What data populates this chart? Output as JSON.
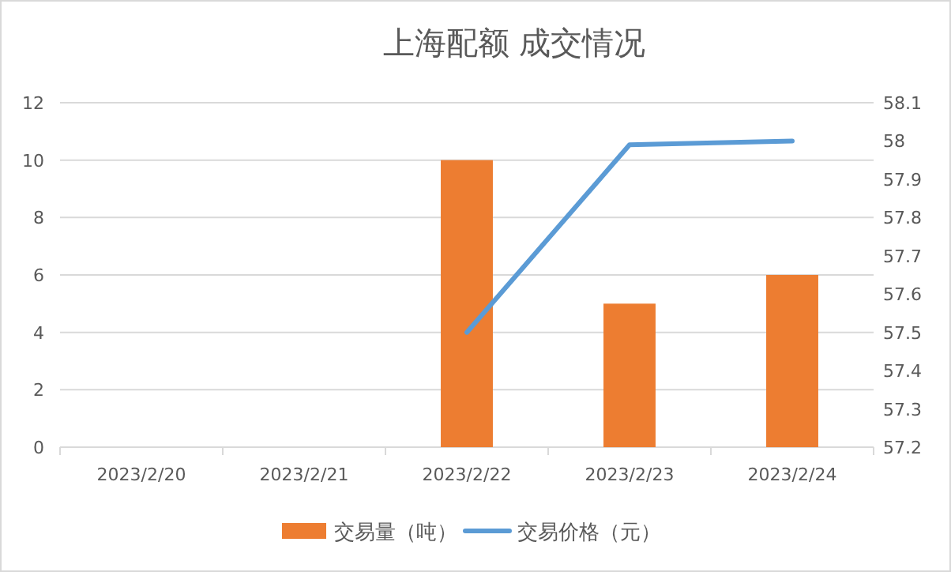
{
  "chart_data": {
    "type": "bar",
    "title": "上海配额 成交情况",
    "categories": [
      "2023/2/20",
      "2023/2/21",
      "2023/2/22",
      "2023/2/23",
      "2023/2/24"
    ],
    "series": [
      {
        "name": "交易量（吨）",
        "color": "#ed7d31",
        "values": [
          null,
          null,
          10,
          5,
          6
        ]
      },
      {
        "name": "交易价格（元）",
        "type": "line",
        "axis": "y2",
        "color": "#5b9bd5",
        "values": [
          null,
          null,
          57.5,
          57.99,
          58.0
        ]
      }
    ],
    "ylim": [
      0,
      12
    ],
    "yticks": [
      0,
      2,
      4,
      6,
      8,
      10,
      12
    ],
    "y2lim": [
      57.2,
      58.1
    ],
    "y2ticks": [
      57.2,
      57.3,
      57.4,
      57.5,
      57.6,
      57.7,
      57.8,
      57.9,
      {
        "value": 58,
        "label": "58"
      },
      58.1
    ],
    "grid": "y",
    "legend": "bottom",
    "marker": "none",
    "line_style": "solid"
  }
}
